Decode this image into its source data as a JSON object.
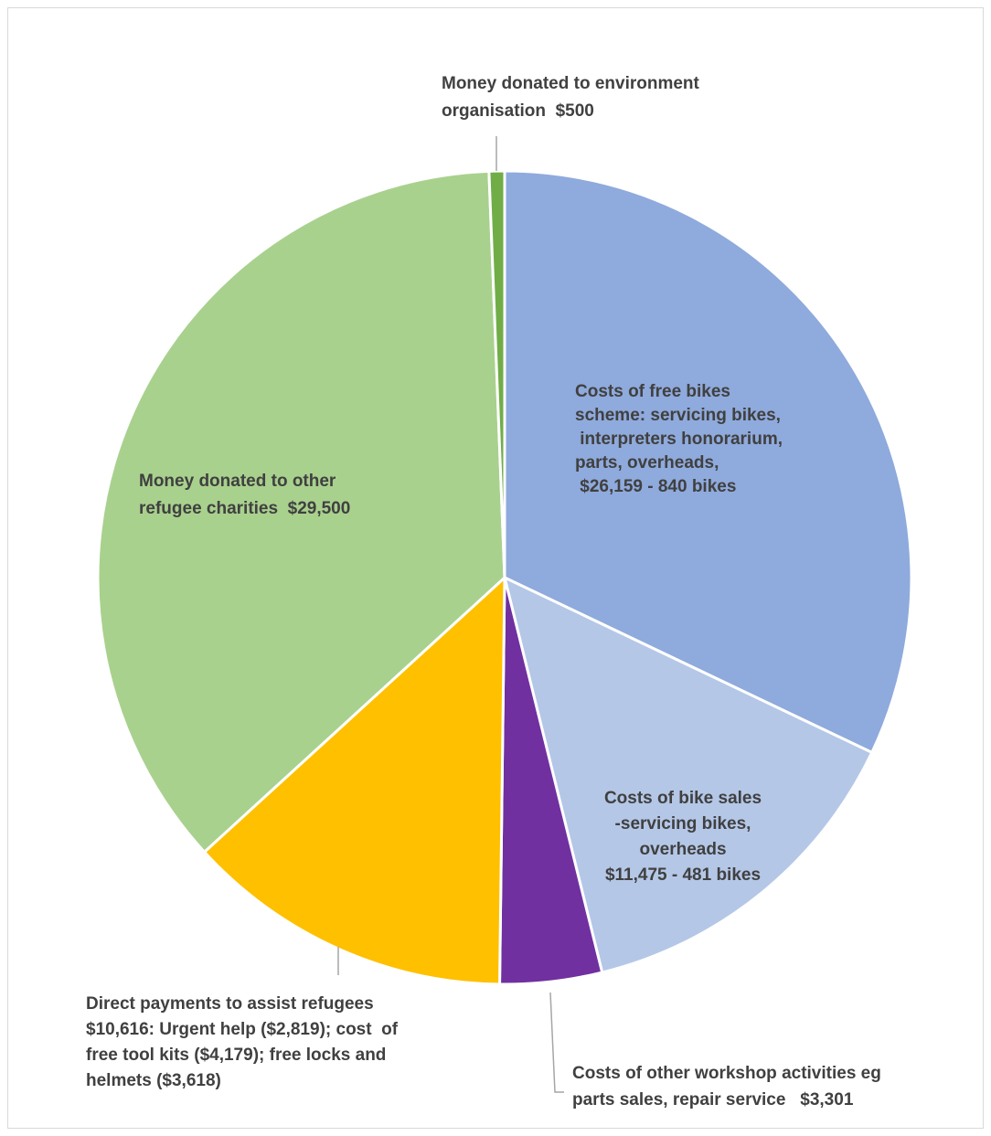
{
  "chart_data": {
    "type": "pie",
    "title": "",
    "legend": "none",
    "slices": [
      {
        "value": 26159,
        "color": "#8faadc",
        "label_lines": [
          "Costs of free bikes",
          "scheme: servicing bikes,",
          " interpreters honorarium,",
          "parts, overheads,",
          " $26,159 - 840 bikes"
        ]
      },
      {
        "value": 11475,
        "color": "#b4c7e7",
        "label_lines": [
          "Costs of bike sales",
          "-servicing bikes,",
          "overheads",
          "$11,475 - 481 bikes"
        ]
      },
      {
        "value": 3301,
        "color": "#7030a0",
        "label_lines": [
          "Costs of other workshop activities eg",
          "parts sales, repair service   $3,301"
        ]
      },
      {
        "value": 10616,
        "color": "#ffc000",
        "label_lines": [
          "Direct payments to assist refugees",
          "$10,616: Urgent help ($2,819); cost  of",
          "free tool kits ($4,179); free locks and",
          "helmets ($3,618)"
        ]
      },
      {
        "value": 29500,
        "color": "#a9d18e",
        "label_lines": [
          "Money donated to other",
          "refugee charities  $29,500"
        ]
      },
      {
        "value": 500,
        "color": "#70ad47",
        "label_lines": [
          "Money donated to environment",
          "organisation  $500"
        ]
      }
    ]
  }
}
